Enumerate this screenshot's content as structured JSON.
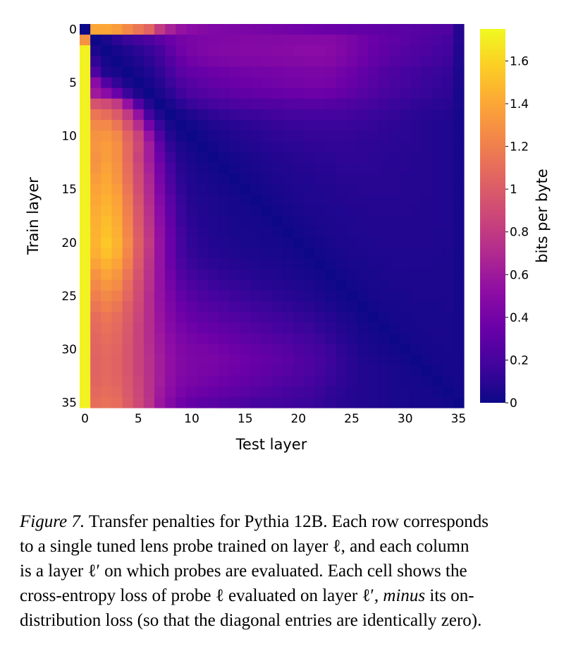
{
  "chart_data": {
    "type": "heatmap",
    "title": "",
    "xlabel": "Test layer",
    "ylabel": "Train layer",
    "colorbar_label": "bits per byte",
    "colormap": "plasma",
    "n_layers": 36,
    "x_ticks": [
      0,
      5,
      10,
      15,
      20,
      25,
      30,
      35
    ],
    "y_ticks": [
      0,
      5,
      10,
      15,
      20,
      25,
      30,
      35
    ],
    "x_tick_labels": [
      "0",
      "5",
      "10",
      "15",
      "20",
      "25",
      "30",
      "35"
    ],
    "y_tick_labels": [
      "0",
      "5",
      "10",
      "15",
      "20",
      "25",
      "30",
      "35"
    ],
    "colorbar_range": [
      0,
      1.75
    ],
    "colorbar_ticks": [
      0,
      0.2,
      0.4,
      0.6,
      0.8,
      1,
      1.2,
      1.4,
      1.6
    ],
    "colorbar_tick_labels": [
      "0",
      "0.2",
      "0.4",
      "0.6",
      "0.8",
      "1",
      "1.2",
      "1.4",
      "1.6"
    ],
    "values": [
      [
        0,
        1.4,
        1.4,
        1.35,
        1.25,
        1.15,
        1.05,
        0.8,
        0.65,
        0.55,
        0.5,
        0.48,
        0.46,
        0.45,
        0.44,
        0.43,
        0.42,
        0.41,
        0.4,
        0.39,
        0.38,
        0.37,
        0.36,
        0.35,
        0.34,
        0.33,
        0.32,
        0.31,
        0.3,
        0.29,
        0.28,
        0.27,
        0.26,
        0.25,
        0.24,
        0.08
      ],
      [
        1.3,
        0,
        0.04,
        0.1,
        0.15,
        0.18,
        0.22,
        0.28,
        0.35,
        0.4,
        0.42,
        0.44,
        0.45,
        0.46,
        0.46,
        0.47,
        0.47,
        0.47,
        0.47,
        0.48,
        0.48,
        0.48,
        0.48,
        0.48,
        0.45,
        0.42,
        0.38,
        0.35,
        0.32,
        0.3,
        0.28,
        0.26,
        0.24,
        0.22,
        0.2,
        0.08
      ],
      [
        1.72,
        0.05,
        0,
        0.03,
        0.06,
        0.1,
        0.14,
        0.2,
        0.3,
        0.38,
        0.42,
        0.44,
        0.46,
        0.47,
        0.47,
        0.48,
        0.48,
        0.48,
        0.49,
        0.49,
        0.5,
        0.5,
        0.5,
        0.49,
        0.46,
        0.42,
        0.38,
        0.34,
        0.31,
        0.28,
        0.26,
        0.24,
        0.22,
        0.2,
        0.18,
        0.07
      ],
      [
        1.72,
        0.12,
        0.03,
        0,
        0.03,
        0.06,
        0.1,
        0.16,
        0.25,
        0.33,
        0.38,
        0.4,
        0.42,
        0.43,
        0.44,
        0.45,
        0.45,
        0.46,
        0.46,
        0.47,
        0.47,
        0.48,
        0.48,
        0.47,
        0.44,
        0.4,
        0.36,
        0.32,
        0.29,
        0.26,
        0.24,
        0.22,
        0.2,
        0.18,
        0.16,
        0.06
      ],
      [
        1.72,
        0.22,
        0.06,
        0.03,
        0,
        0.03,
        0.06,
        0.12,
        0.2,
        0.28,
        0.32,
        0.34,
        0.36,
        0.37,
        0.38,
        0.39,
        0.4,
        0.4,
        0.41,
        0.42,
        0.42,
        0.43,
        0.43,
        0.42,
        0.39,
        0.36,
        0.32,
        0.28,
        0.25,
        0.22,
        0.2,
        0.18,
        0.16,
        0.15,
        0.13,
        0.05
      ],
      [
        1.72,
        0.5,
        0.25,
        0.12,
        0.04,
        0,
        0.03,
        0.08,
        0.15,
        0.22,
        0.27,
        0.3,
        0.32,
        0.34,
        0.35,
        0.36,
        0.37,
        0.38,
        0.39,
        0.4,
        0.4,
        0.41,
        0.41,
        0.4,
        0.37,
        0.34,
        0.3,
        0.27,
        0.24,
        0.21,
        0.19,
        0.17,
        0.15,
        0.14,
        0.12,
        0.05
      ],
      [
        1.72,
        0.6,
        0.5,
        0.35,
        0.15,
        0.05,
        0,
        0.04,
        0.1,
        0.17,
        0.22,
        0.25,
        0.27,
        0.29,
        0.3,
        0.31,
        0.32,
        0.33,
        0.34,
        0.35,
        0.35,
        0.36,
        0.36,
        0.35,
        0.33,
        0.3,
        0.27,
        0.24,
        0.21,
        0.19,
        0.17,
        0.15,
        0.14,
        0.12,
        0.11,
        0.04
      ],
      [
        1.72,
        0.95,
        0.9,
        0.8,
        0.55,
        0.25,
        0.08,
        0,
        0.04,
        0.1,
        0.14,
        0.17,
        0.19,
        0.21,
        0.22,
        0.23,
        0.24,
        0.25,
        0.25,
        0.26,
        0.27,
        0.27,
        0.27,
        0.26,
        0.25,
        0.23,
        0.21,
        0.19,
        0.17,
        0.15,
        0.14,
        0.12,
        0.11,
        0.1,
        0.09,
        0.04
      ],
      [
        1.72,
        1.15,
        1.1,
        1.0,
        0.8,
        0.55,
        0.2,
        0.06,
        0,
        0.03,
        0.06,
        0.09,
        0.11,
        0.13,
        0.14,
        0.15,
        0.16,
        0.17,
        0.18,
        0.19,
        0.19,
        0.2,
        0.2,
        0.2,
        0.19,
        0.18,
        0.17,
        0.15,
        0.14,
        0.13,
        0.11,
        0.1,
        0.09,
        0.08,
        0.07,
        0.03
      ],
      [
        1.72,
        1.25,
        1.25,
        1.15,
        0.95,
        0.72,
        0.4,
        0.15,
        0.04,
        0,
        0.02,
        0.04,
        0.06,
        0.08,
        0.09,
        0.1,
        0.11,
        0.12,
        0.13,
        0.14,
        0.14,
        0.15,
        0.15,
        0.15,
        0.15,
        0.14,
        0.14,
        0.13,
        0.12,
        0.11,
        0.1,
        0.09,
        0.08,
        0.07,
        0.06,
        0.03
      ],
      [
        1.72,
        1.3,
        1.32,
        1.25,
        1.05,
        0.85,
        0.55,
        0.25,
        0.08,
        0.02,
        0,
        0.02,
        0.04,
        0.05,
        0.07,
        0.08,
        0.09,
        0.1,
        0.11,
        0.12,
        0.12,
        0.13,
        0.13,
        0.13,
        0.13,
        0.13,
        0.12,
        0.12,
        0.11,
        0.1,
        0.1,
        0.09,
        0.08,
        0.07,
        0.06,
        0.03
      ],
      [
        1.72,
        1.32,
        1.35,
        1.28,
        1.08,
        0.88,
        0.62,
        0.32,
        0.12,
        0.05,
        0.02,
        0,
        0.02,
        0.04,
        0.05,
        0.06,
        0.07,
        0.08,
        0.09,
        0.1,
        0.1,
        0.11,
        0.11,
        0.12,
        0.12,
        0.12,
        0.11,
        0.11,
        0.1,
        0.1,
        0.09,
        0.09,
        0.08,
        0.07,
        0.06,
        0.03
      ],
      [
        1.72,
        1.3,
        1.35,
        1.28,
        1.08,
        0.85,
        0.62,
        0.36,
        0.16,
        0.07,
        0.04,
        0.02,
        0,
        0.02,
        0.03,
        0.04,
        0.05,
        0.06,
        0.07,
        0.08,
        0.09,
        0.09,
        0.1,
        0.1,
        0.11,
        0.11,
        0.11,
        0.1,
        0.1,
        0.09,
        0.09,
        0.08,
        0.08,
        0.07,
        0.06,
        0.03
      ],
      [
        1.72,
        1.32,
        1.38,
        1.3,
        1.1,
        0.88,
        0.65,
        0.4,
        0.2,
        0.09,
        0.05,
        0.03,
        0.02,
        0,
        0.02,
        0.03,
        0.04,
        0.05,
        0.06,
        0.07,
        0.08,
        0.08,
        0.09,
        0.09,
        0.1,
        0.1,
        0.1,
        0.1,
        0.09,
        0.09,
        0.09,
        0.08,
        0.08,
        0.07,
        0.06,
        0.03
      ],
      [
        1.72,
        1.35,
        1.4,
        1.32,
        1.12,
        0.9,
        0.68,
        0.42,
        0.22,
        0.1,
        0.06,
        0.04,
        0.03,
        0.02,
        0,
        0.02,
        0.03,
        0.04,
        0.05,
        0.06,
        0.07,
        0.07,
        0.08,
        0.08,
        0.09,
        0.09,
        0.09,
        0.09,
        0.09,
        0.09,
        0.08,
        0.08,
        0.08,
        0.07,
        0.06,
        0.03
      ],
      [
        1.72,
        1.38,
        1.42,
        1.35,
        1.15,
        0.92,
        0.7,
        0.45,
        0.25,
        0.12,
        0.07,
        0.05,
        0.04,
        0.03,
        0.02,
        0,
        0.02,
        0.03,
        0.04,
        0.05,
        0.06,
        0.06,
        0.07,
        0.07,
        0.08,
        0.08,
        0.09,
        0.09,
        0.09,
        0.09,
        0.08,
        0.08,
        0.08,
        0.07,
        0.06,
        0.03
      ],
      [
        1.72,
        1.4,
        1.45,
        1.38,
        1.18,
        0.95,
        0.72,
        0.48,
        0.28,
        0.14,
        0.08,
        0.06,
        0.05,
        0.04,
        0.03,
        0.02,
        0,
        0.02,
        0.03,
        0.04,
        0.05,
        0.06,
        0.06,
        0.07,
        0.07,
        0.08,
        0.08,
        0.08,
        0.08,
        0.08,
        0.08,
        0.08,
        0.07,
        0.07,
        0.06,
        0.03
      ],
      [
        1.72,
        1.42,
        1.47,
        1.4,
        1.2,
        0.97,
        0.74,
        0.5,
        0.3,
        0.15,
        0.09,
        0.07,
        0.05,
        0.04,
        0.03,
        0.03,
        0.02,
        0,
        0.02,
        0.03,
        0.04,
        0.05,
        0.05,
        0.06,
        0.06,
        0.07,
        0.07,
        0.08,
        0.08,
        0.08,
        0.08,
        0.07,
        0.07,
        0.07,
        0.06,
        0.03
      ],
      [
        1.72,
        1.44,
        1.5,
        1.42,
        1.22,
        0.98,
        0.76,
        0.52,
        0.32,
        0.16,
        0.1,
        0.07,
        0.06,
        0.05,
        0.04,
        0.03,
        0.03,
        0.02,
        0,
        0.02,
        0.03,
        0.04,
        0.05,
        0.05,
        0.06,
        0.06,
        0.07,
        0.07,
        0.07,
        0.07,
        0.07,
        0.07,
        0.07,
        0.07,
        0.06,
        0.03
      ],
      [
        1.72,
        1.45,
        1.52,
        1.44,
        1.24,
        1.0,
        0.78,
        0.54,
        0.34,
        0.18,
        0.11,
        0.08,
        0.06,
        0.05,
        0.04,
        0.04,
        0.03,
        0.03,
        0.02,
        0,
        0.02,
        0.03,
        0.04,
        0.05,
        0.05,
        0.06,
        0.06,
        0.07,
        0.07,
        0.07,
        0.07,
        0.07,
        0.07,
        0.06,
        0.06,
        0.03
      ],
      [
        1.72,
        1.46,
        1.55,
        1.46,
        1.26,
        1.02,
        0.8,
        0.55,
        0.35,
        0.19,
        0.12,
        0.09,
        0.07,
        0.06,
        0.05,
        0.04,
        0.04,
        0.03,
        0.03,
        0.02,
        0,
        0.02,
        0.03,
        0.04,
        0.05,
        0.05,
        0.06,
        0.06,
        0.07,
        0.07,
        0.07,
        0.07,
        0.07,
        0.06,
        0.06,
        0.03
      ],
      [
        1.72,
        1.44,
        1.52,
        1.44,
        1.24,
        1.0,
        0.78,
        0.55,
        0.35,
        0.2,
        0.13,
        0.1,
        0.08,
        0.07,
        0.06,
        0.05,
        0.05,
        0.04,
        0.04,
        0.03,
        0.02,
        0,
        0.02,
        0.03,
        0.04,
        0.05,
        0.05,
        0.06,
        0.06,
        0.06,
        0.06,
        0.06,
        0.06,
        0.06,
        0.05,
        0.03
      ],
      [
        1.72,
        1.38,
        1.45,
        1.38,
        1.2,
        0.98,
        0.76,
        0.55,
        0.36,
        0.22,
        0.15,
        0.12,
        0.1,
        0.09,
        0.08,
        0.07,
        0.06,
        0.05,
        0.05,
        0.04,
        0.03,
        0.02,
        0,
        0.02,
        0.03,
        0.04,
        0.04,
        0.05,
        0.05,
        0.06,
        0.06,
        0.06,
        0.06,
        0.05,
        0.05,
        0.03
      ],
      [
        1.72,
        1.3,
        1.38,
        1.32,
        1.15,
        0.95,
        0.75,
        0.55,
        0.38,
        0.25,
        0.18,
        0.15,
        0.13,
        0.11,
        0.1,
        0.09,
        0.08,
        0.07,
        0.06,
        0.05,
        0.04,
        0.03,
        0.02,
        0,
        0.02,
        0.03,
        0.04,
        0.04,
        0.05,
        0.05,
        0.05,
        0.05,
        0.05,
        0.05,
        0.05,
        0.03
      ],
      [
        1.72,
        1.25,
        1.32,
        1.26,
        1.1,
        0.92,
        0.74,
        0.55,
        0.4,
        0.28,
        0.22,
        0.19,
        0.16,
        0.14,
        0.13,
        0.12,
        0.1,
        0.09,
        0.08,
        0.07,
        0.06,
        0.05,
        0.03,
        0.02,
        0,
        0.02,
        0.03,
        0.04,
        0.04,
        0.05,
        0.05,
        0.05,
        0.05,
        0.05,
        0.05,
        0.03
      ],
      [
        1.72,
        1.2,
        1.25,
        1.2,
        1.06,
        0.9,
        0.72,
        0.55,
        0.42,
        0.32,
        0.26,
        0.22,
        0.2,
        0.18,
        0.16,
        0.14,
        0.13,
        0.12,
        0.1,
        0.09,
        0.08,
        0.06,
        0.05,
        0.03,
        0.02,
        0,
        0.02,
        0.03,
        0.04,
        0.04,
        0.04,
        0.05,
        0.05,
        0.05,
        0.05,
        0.03
      ],
      [
        1.72,
        1.15,
        1.2,
        1.15,
        1.02,
        0.88,
        0.72,
        0.56,
        0.44,
        0.35,
        0.3,
        0.26,
        0.24,
        0.22,
        0.2,
        0.18,
        0.16,
        0.15,
        0.13,
        0.12,
        0.1,
        0.09,
        0.07,
        0.05,
        0.03,
        0.02,
        0,
        0.02,
        0.03,
        0.03,
        0.04,
        0.04,
        0.04,
        0.04,
        0.05,
        0.03
      ],
      [
        1.72,
        1.1,
        1.15,
        1.1,
        1.0,
        0.86,
        0.72,
        0.57,
        0.46,
        0.38,
        0.33,
        0.3,
        0.28,
        0.26,
        0.24,
        0.22,
        0.2,
        0.18,
        0.17,
        0.15,
        0.13,
        0.12,
        0.1,
        0.08,
        0.05,
        0.04,
        0.02,
        0,
        0.02,
        0.03,
        0.03,
        0.04,
        0.04,
        0.04,
        0.04,
        0.03
      ],
      [
        1.72,
        1.08,
        1.12,
        1.08,
        0.98,
        0.85,
        0.72,
        0.58,
        0.48,
        0.41,
        0.37,
        0.34,
        0.32,
        0.3,
        0.28,
        0.26,
        0.24,
        0.22,
        0.2,
        0.18,
        0.16,
        0.15,
        0.12,
        0.1,
        0.07,
        0.05,
        0.03,
        0.02,
        0,
        0.02,
        0.03,
        0.03,
        0.04,
        0.04,
        0.04,
        0.03
      ],
      [
        1.72,
        1.06,
        1.1,
        1.06,
        0.97,
        0.85,
        0.72,
        0.6,
        0.5,
        0.44,
        0.4,
        0.38,
        0.36,
        0.34,
        0.32,
        0.3,
        0.28,
        0.26,
        0.24,
        0.22,
        0.2,
        0.18,
        0.15,
        0.12,
        0.09,
        0.06,
        0.04,
        0.03,
        0.02,
        0,
        0.02,
        0.03,
        0.03,
        0.04,
        0.04,
        0.03
      ],
      [
        1.72,
        1.05,
        1.08,
        1.05,
        0.96,
        0.85,
        0.73,
        0.61,
        0.52,
        0.46,
        0.43,
        0.42,
        0.4,
        0.38,
        0.36,
        0.34,
        0.32,
        0.3,
        0.28,
        0.26,
        0.23,
        0.21,
        0.18,
        0.15,
        0.11,
        0.08,
        0.05,
        0.04,
        0.03,
        0.02,
        0,
        0.02,
        0.03,
        0.03,
        0.04,
        0.03
      ],
      [
        1.72,
        1.04,
        1.07,
        1.04,
        0.96,
        0.85,
        0.74,
        0.62,
        0.53,
        0.47,
        0.44,
        0.43,
        0.42,
        0.4,
        0.38,
        0.36,
        0.34,
        0.32,
        0.3,
        0.28,
        0.25,
        0.23,
        0.2,
        0.16,
        0.12,
        0.09,
        0.06,
        0.05,
        0.04,
        0.03,
        0.02,
        0,
        0.02,
        0.03,
        0.03,
        0.03
      ],
      [
        1.72,
        1.04,
        1.07,
        1.04,
        0.96,
        0.85,
        0.74,
        0.62,
        0.53,
        0.47,
        0.44,
        0.42,
        0.41,
        0.39,
        0.37,
        0.35,
        0.33,
        0.31,
        0.29,
        0.27,
        0.24,
        0.22,
        0.19,
        0.15,
        0.12,
        0.09,
        0.07,
        0.06,
        0.05,
        0.04,
        0.03,
        0.02,
        0,
        0.02,
        0.03,
        0.03
      ],
      [
        1.72,
        1.05,
        1.08,
        1.05,
        0.97,
        0.86,
        0.75,
        0.62,
        0.52,
        0.45,
        0.42,
        0.4,
        0.38,
        0.36,
        0.34,
        0.32,
        0.3,
        0.28,
        0.26,
        0.24,
        0.22,
        0.2,
        0.17,
        0.14,
        0.11,
        0.09,
        0.07,
        0.06,
        0.05,
        0.04,
        0.03,
        0.03,
        0.02,
        0,
        0.02,
        0.03
      ],
      [
        1.72,
        1.07,
        1.1,
        1.07,
        0.98,
        0.87,
        0.75,
        0.6,
        0.5,
        0.42,
        0.38,
        0.36,
        0.34,
        0.32,
        0.3,
        0.28,
        0.26,
        0.24,
        0.22,
        0.2,
        0.18,
        0.17,
        0.15,
        0.12,
        0.1,
        0.08,
        0.07,
        0.06,
        0.05,
        0.04,
        0.04,
        0.03,
        0.03,
        0.02,
        0,
        0.02
      ],
      [
        1.72,
        1.1,
        1.12,
        1.1,
        1.0,
        0.88,
        0.76,
        0.58,
        0.47,
        0.38,
        0.33,
        0.3,
        0.28,
        0.26,
        0.24,
        0.22,
        0.2,
        0.19,
        0.18,
        0.17,
        0.16,
        0.15,
        0.13,
        0.11,
        0.09,
        0.08,
        0.07,
        0.06,
        0.05,
        0.04,
        0.04,
        0.03,
        0.03,
        0.03,
        0.02,
        0
      ]
    ]
  },
  "caption": {
    "label": "Figure 7.",
    "line1_rest": " Transfer penalties for Pythia 12B. Each row corresponds",
    "line2": "to a single tuned lens probe trained on layer ℓ, and each column",
    "line3": "is a layer ℓ′ on which probes are evaluated. Each cell shows the",
    "line4a": "cross-entropy loss of probe ℓ evaluated on layer ℓ′, ",
    "line4_minus": "minus",
    "line4b": " its on-",
    "line5": "distribution loss (so that the diagonal entries are identically zero)."
  }
}
